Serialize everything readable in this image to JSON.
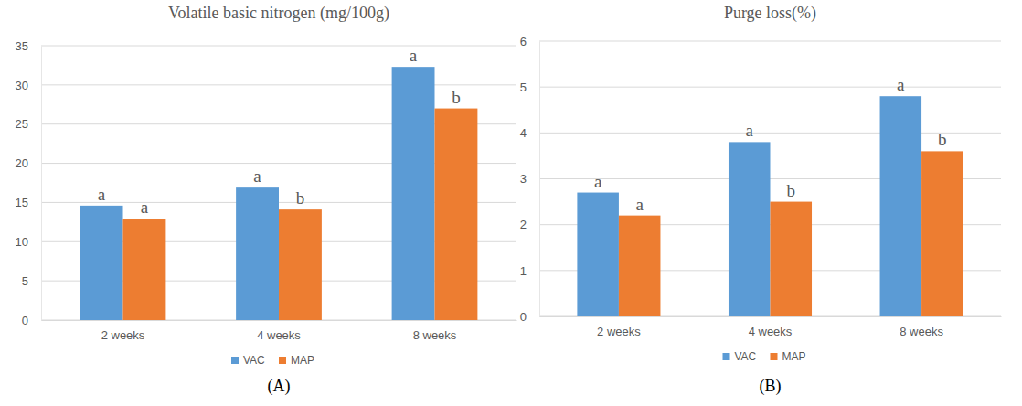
{
  "chart_data": [
    {
      "type": "bar",
      "title": "Volatile basic nitrogen (mg/100g)",
      "categories": [
        "2 weeks",
        "4 weeks",
        "8 weeks"
      ],
      "series": [
        {
          "name": "VAC",
          "color": "#5b9bd5",
          "values": [
            14.6,
            16.9,
            32.3
          ],
          "annotations": [
            "a",
            "a",
            "a"
          ]
        },
        {
          "name": "MAP",
          "color": "#ed7d31",
          "values": [
            12.9,
            14.1,
            27.0
          ],
          "annotations": [
            "a",
            "b",
            "b"
          ]
        }
      ],
      "ylim": [
        0,
        35
      ],
      "yticks": [
        0,
        5,
        10,
        15,
        20,
        25,
        30,
        35
      ],
      "grid": true,
      "legend": "bottom",
      "panel_label": "(A)"
    },
    {
      "type": "bar",
      "title": "Purge loss(%)",
      "categories": [
        "2 weeks",
        "4 weeks",
        "8 weeks"
      ],
      "series": [
        {
          "name": "VAC",
          "color": "#5b9bd5",
          "values": [
            2.7,
            3.8,
            4.8
          ],
          "annotations": [
            "a",
            "a",
            "a"
          ]
        },
        {
          "name": "MAP",
          "color": "#ed7d31",
          "values": [
            2.2,
            2.5,
            3.6
          ],
          "annotations": [
            "a",
            "b",
            "b"
          ]
        }
      ],
      "ylim": [
        0,
        6
      ],
      "yticks": [
        0,
        1,
        2,
        3,
        4,
        5,
        6
      ],
      "grid": true,
      "legend": "bottom",
      "panel_label": "(B)"
    }
  ]
}
